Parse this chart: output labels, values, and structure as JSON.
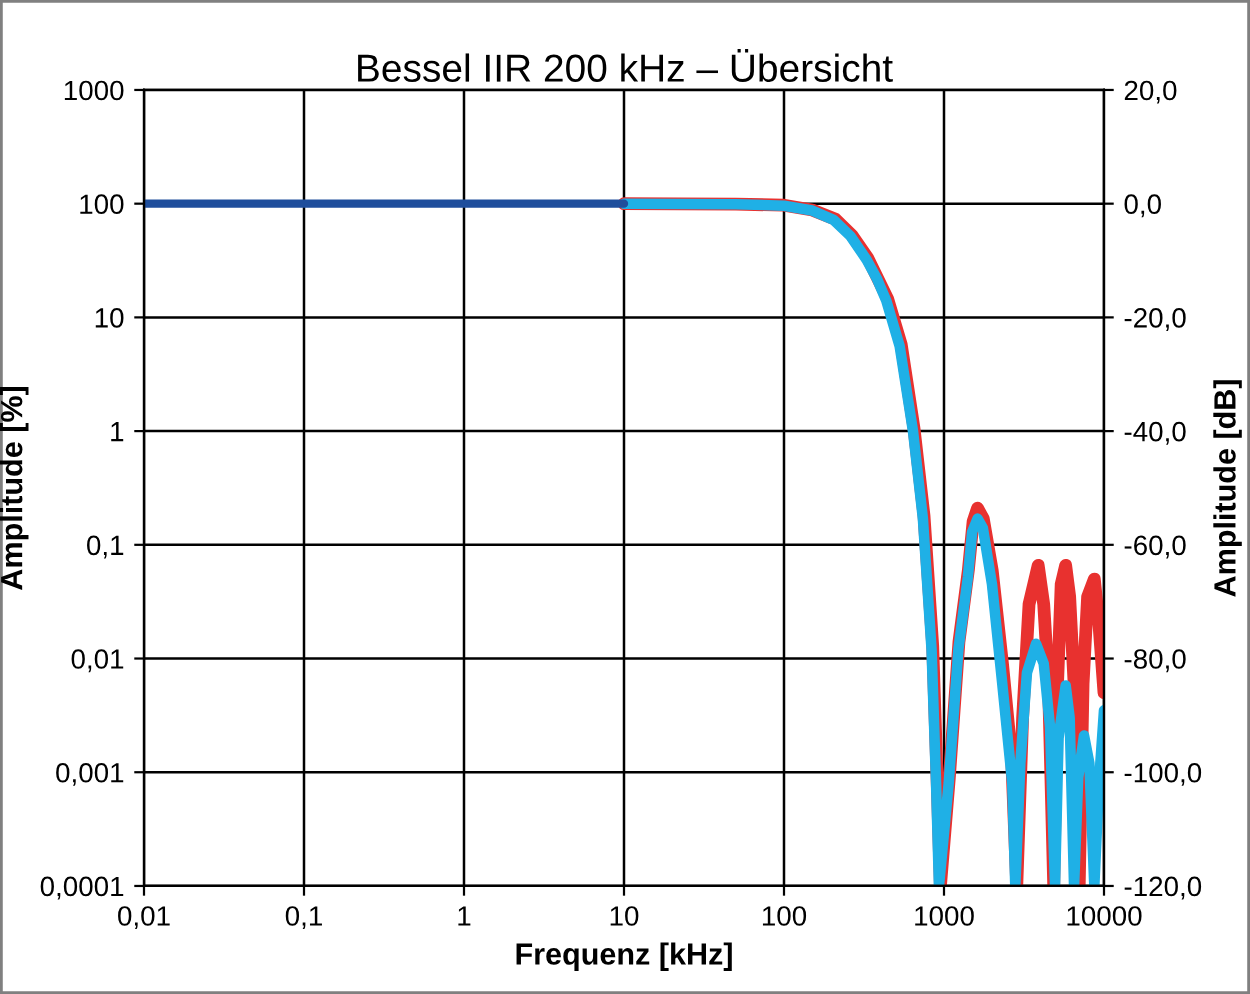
{
  "chart_data": {
    "type": "line",
    "title": "Bessel IIR 200 kHz – Übersicht",
    "xlabel": "Frequenz [kHz]",
    "ylabel": "Amplitude [%]",
    "y2label": "Amplitude [dB]",
    "log": "xy",
    "grid": true,
    "marker": "none",
    "line_style": "solid",
    "xlim": [
      0.01,
      10000
    ],
    "ylim": [
      0.0001,
      1000
    ],
    "y2lim": [
      -120,
      20
    ],
    "xticks": [
      {
        "value": 0.01,
        "label": "0,01"
      },
      {
        "value": 0.1,
        "label": "0,1"
      },
      1,
      10,
      100,
      1000,
      10000
    ],
    "yticks": [
      {
        "value": 0.0001,
        "label": "0,0001"
      },
      {
        "value": 0.001,
        "label": "0,001"
      },
      {
        "value": 0.01,
        "label": "0,01"
      },
      {
        "value": 0.1,
        "label": "0,1"
      },
      1,
      10,
      100,
      1000
    ],
    "y2ticks": [
      {
        "value": -120,
        "label": "-120,0"
      },
      {
        "value": -100,
        "label": "-100,0"
      },
      {
        "value": -80,
        "label": "-80,0"
      },
      {
        "value": -60,
        "label": "-60,0"
      },
      {
        "value": -40,
        "label": "-40,0"
      },
      {
        "value": -20,
        "label": "-20,0"
      },
      {
        "value": 0,
        "label": "0,0"
      },
      {
        "value": 20,
        "label": "20,0"
      }
    ],
    "series": [
      {
        "color": "#e8312f",
        "x": [
          10,
          50,
          100,
          150,
          210,
          265,
          335,
          445,
          540,
          650,
          750,
          850,
          905,
          950,
          1080,
          1240,
          1420,
          1520,
          1620,
          1760,
          2000,
          2320,
          2650,
          2850,
          3100,
          3400,
          3880,
          4200,
          4500,
          4850,
          5100,
          5400,
          5760,
          6100,
          6600,
          7000,
          7400,
          7900,
          8700,
          9300,
          10000
        ],
        "values": [
          100,
          99,
          97,
          88,
          73,
          53,
          33,
          14.5,
          5.8,
          1.05,
          0.18,
          0.013,
          0.0009,
          0.0001,
          0.0009,
          0.014,
          0.06,
          0.16,
          0.21,
          0.17,
          0.06,
          0.009,
          0.0013,
          0.0001,
          0.003,
          0.03,
          0.066,
          0.03,
          0.006,
          0.0001,
          0.005,
          0.045,
          0.066,
          0.035,
          0.004,
          0.0001,
          0.006,
          0.035,
          0.05,
          0.02,
          0.005
        ]
      },
      {
        "color": "#1fb0e6",
        "x": [
          10,
          50,
          100,
          150,
          204,
          260,
          329,
          380,
          436,
          528,
          640,
          738,
          836,
          892,
          930,
          1070,
          1230,
          1410,
          1500,
          1620,
          1750,
          1995,
          2310,
          2670,
          2790,
          3000,
          3300,
          3760,
          4200,
          4600,
          4940,
          5200,
          5760,
          6100,
          6500,
          6900,
          7500,
          8100,
          8700,
          9300,
          10000
        ],
        "values": [
          100,
          99,
          96,
          87,
          72,
          52,
          32,
          22,
          14,
          5.6,
          1,
          0.17,
          0.012,
          0.0008,
          0.0001,
          0.0008,
          0.012,
          0.052,
          0.13,
          0.17,
          0.14,
          0.045,
          0.0061,
          0.0008,
          0.0001,
          0.0012,
          0.0075,
          0.0135,
          0.009,
          0.0025,
          0.0001,
          0.002,
          0.0058,
          0.003,
          0.0001,
          0.0009,
          0.0021,
          0.0012,
          0.0001,
          0.0008,
          0.0035
        ]
      },
      {
        "color": "#1f4e9c",
        "x": [
          0.01,
          10
        ],
        "values": [
          100,
          100
        ]
      }
    ]
  }
}
